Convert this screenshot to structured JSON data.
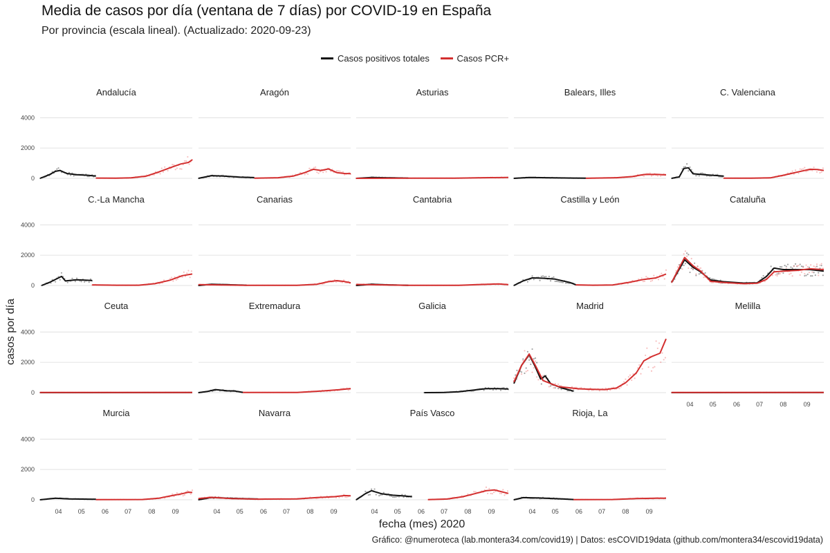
{
  "title": "Media de casos por día (ventana de 7 días) por COVID-19 en España",
  "subtitle": "Por provincia (escala lineal). (Actualizado: 2020-09-23)",
  "caption": "Gráfico: @numeroteca (lab.montera34.com/covid19) | Datos: esCOVID19data (github.com/montera34/escovid19data)",
  "colors": {
    "total": "#111111",
    "pcr": "#d32f2f",
    "pcr_points": "#f08a8a",
    "grid": "#e6e6e6"
  },
  "chart_data": {
    "type": "line",
    "xlabel": "fecha (mes) 2020",
    "ylabel": "casos por día",
    "x_ticks": [
      "04",
      "05",
      "06",
      "07",
      "08",
      "09"
    ],
    "x_tick_dates": [
      "2020-04-01",
      "2020-05-01",
      "2020-06-01",
      "2020-07-01",
      "2020-08-01",
      "2020-09-01"
    ],
    "xlim": [
      "2020-03-08",
      "2020-09-23"
    ],
    "y_ticks": [
      0,
      2000,
      4000
    ],
    "ylim": [
      0,
      4200
    ],
    "legend": [
      "Casos positivos totales",
      "Casos PCR+"
    ],
    "legend_position": "top",
    "grid": true,
    "facets": [
      {
        "name": "Andalucía",
        "total": [
          [
            "2020-03-08",
            0
          ],
          [
            "2020-03-20",
            240
          ],
          [
            "2020-03-28",
            460
          ],
          [
            "2020-04-03",
            520
          ],
          [
            "2020-04-12",
            320
          ],
          [
            "2020-04-25",
            240
          ],
          [
            "2020-05-10",
            200
          ],
          [
            "2020-05-20",
            150
          ]
        ],
        "pcr": [
          [
            "2020-05-20",
            20
          ],
          [
            "2020-06-15",
            10
          ],
          [
            "2020-07-05",
            30
          ],
          [
            "2020-07-25",
            150
          ],
          [
            "2020-08-10",
            420
          ],
          [
            "2020-08-25",
            700
          ],
          [
            "2020-09-08",
            950
          ],
          [
            "2020-09-18",
            1050
          ],
          [
            "2020-09-23",
            1230
          ]
        ]
      },
      {
        "name": "Aragón",
        "total": [
          [
            "2020-03-08",
            0
          ],
          [
            "2020-03-25",
            180
          ],
          [
            "2020-04-10",
            150
          ],
          [
            "2020-05-01",
            80
          ],
          [
            "2020-05-20",
            50
          ]
        ],
        "pcr": [
          [
            "2020-05-20",
            10
          ],
          [
            "2020-06-20",
            40
          ],
          [
            "2020-07-10",
            150
          ],
          [
            "2020-07-25",
            380
          ],
          [
            "2020-08-05",
            600
          ],
          [
            "2020-08-15",
            520
          ],
          [
            "2020-08-25",
            620
          ],
          [
            "2020-09-05",
            380
          ],
          [
            "2020-09-15",
            320
          ],
          [
            "2020-09-23",
            310
          ]
        ]
      },
      {
        "name": "Asturias",
        "total": [
          [
            "2020-03-08",
            0
          ],
          [
            "2020-03-28",
            60
          ],
          [
            "2020-04-15",
            40
          ],
          [
            "2020-05-15",
            20
          ]
        ],
        "pcr": [
          [
            "2020-03-08",
            0
          ],
          [
            "2020-05-15",
            10
          ],
          [
            "2020-07-15",
            10
          ],
          [
            "2020-08-20",
            40
          ],
          [
            "2020-09-23",
            60
          ]
        ]
      },
      {
        "name": "Balears, Illes",
        "total": [
          [
            "2020-03-08",
            0
          ],
          [
            "2020-03-28",
            60
          ],
          [
            "2020-04-20",
            40
          ],
          [
            "2020-05-25",
            20
          ],
          [
            "2020-06-10",
            10
          ]
        ],
        "pcr": [
          [
            "2020-06-10",
            5
          ],
          [
            "2020-07-20",
            40
          ],
          [
            "2020-08-10",
            120
          ],
          [
            "2020-08-25",
            250
          ],
          [
            "2020-09-10",
            260
          ],
          [
            "2020-09-23",
            230
          ]
        ]
      },
      {
        "name": "C. Valenciana",
        "total": [
          [
            "2020-03-08",
            0
          ],
          [
            "2020-03-18",
            100
          ],
          [
            "2020-03-24",
            650
          ],
          [
            "2020-03-30",
            700
          ],
          [
            "2020-04-05",
            300
          ],
          [
            "2020-04-20",
            240
          ],
          [
            "2020-05-15",
            150
          ]
        ],
        "pcr": [
          [
            "2020-05-15",
            10
          ],
          [
            "2020-06-20",
            10
          ],
          [
            "2020-07-15",
            30
          ],
          [
            "2020-08-01",
            200
          ],
          [
            "2020-08-20",
            420
          ],
          [
            "2020-09-05",
            600
          ],
          [
            "2020-09-15",
            580
          ],
          [
            "2020-09-23",
            520
          ]
        ]
      },
      {
        "name": "C.-La Mancha",
        "total": [
          [
            "2020-03-10",
            0
          ],
          [
            "2020-03-20",
            200
          ],
          [
            "2020-04-05",
            600
          ],
          [
            "2020-04-10",
            300
          ],
          [
            "2020-04-25",
            380
          ],
          [
            "2020-05-15",
            330
          ]
        ],
        "pcr": [
          [
            "2020-05-15",
            40
          ],
          [
            "2020-06-15",
            20
          ],
          [
            "2020-07-15",
            20
          ],
          [
            "2020-08-05",
            120
          ],
          [
            "2020-08-25",
            350
          ],
          [
            "2020-09-10",
            650
          ],
          [
            "2020-09-23",
            760
          ]
        ]
      },
      {
        "name": "Canarias",
        "total": [
          [
            "2020-03-08",
            0
          ],
          [
            "2020-03-25",
            80
          ],
          [
            "2020-04-10",
            60
          ],
          [
            "2020-05-10",
            20
          ]
        ],
        "pcr": [
          [
            "2020-03-08",
            60
          ],
          [
            "2020-05-10",
            10
          ],
          [
            "2020-07-15",
            10
          ],
          [
            "2020-08-10",
            80
          ],
          [
            "2020-08-25",
            250
          ],
          [
            "2020-09-05",
            320
          ],
          [
            "2020-09-15",
            260
          ],
          [
            "2020-09-23",
            180
          ]
        ]
      },
      {
        "name": "Cantabria",
        "total": [
          [
            "2020-03-08",
            0
          ],
          [
            "2020-03-28",
            80
          ],
          [
            "2020-04-20",
            40
          ],
          [
            "2020-05-15",
            10
          ]
        ],
        "pcr": [
          [
            "2020-03-08",
            70
          ],
          [
            "2020-05-15",
            10
          ],
          [
            "2020-07-20",
            10
          ],
          [
            "2020-08-20",
            70
          ],
          [
            "2020-09-10",
            100
          ],
          [
            "2020-09-23",
            60
          ]
        ]
      },
      {
        "name": "Castilla y León",
        "total": [
          [
            "2020-03-08",
            0
          ],
          [
            "2020-03-20",
            300
          ],
          [
            "2020-04-01",
            500
          ],
          [
            "2020-04-15",
            480
          ],
          [
            "2020-05-01",
            420
          ],
          [
            "2020-05-20",
            200
          ],
          [
            "2020-05-28",
            50
          ]
        ],
        "pcr": [
          [
            "2020-05-28",
            40
          ],
          [
            "2020-06-20",
            20
          ],
          [
            "2020-07-15",
            30
          ],
          [
            "2020-08-05",
            200
          ],
          [
            "2020-08-25",
            400
          ],
          [
            "2020-09-10",
            500
          ],
          [
            "2020-09-23",
            760
          ]
        ]
      },
      {
        "name": "Cataluña",
        "total": [
          [
            "2020-03-08",
            200
          ],
          [
            "2020-03-25",
            1700
          ],
          [
            "2020-04-05",
            1200
          ],
          [
            "2020-04-15",
            900
          ],
          [
            "2020-04-28",
            350
          ],
          [
            "2020-05-15",
            250
          ],
          [
            "2020-06-10",
            160
          ],
          [
            "2020-06-28",
            180
          ],
          [
            "2020-07-10",
            600
          ],
          [
            "2020-07-20",
            1150
          ],
          [
            "2020-08-01",
            1050
          ],
          [
            "2020-08-20",
            1050
          ],
          [
            "2020-09-05",
            1050
          ],
          [
            "2020-09-23",
            950
          ]
        ],
        "pcr": [
          [
            "2020-03-08",
            200
          ],
          [
            "2020-03-25",
            1850
          ],
          [
            "2020-04-05",
            1300
          ],
          [
            "2020-04-15",
            950
          ],
          [
            "2020-04-28",
            280
          ],
          [
            "2020-05-15",
            200
          ],
          [
            "2020-06-10",
            120
          ],
          [
            "2020-06-28",
            150
          ],
          [
            "2020-07-10",
            400
          ],
          [
            "2020-07-20",
            900
          ],
          [
            "2020-08-01",
            950
          ],
          [
            "2020-08-20",
            1000
          ],
          [
            "2020-09-05",
            1100
          ],
          [
            "2020-09-23",
            1050
          ]
        ]
      },
      {
        "name": "Ceuta",
        "total": [
          [
            "2020-03-08",
            0
          ],
          [
            "2020-09-23",
            5
          ]
        ],
        "pcr": [
          [
            "2020-03-08",
            10
          ],
          [
            "2020-09-23",
            15
          ]
        ]
      },
      {
        "name": "Extremadura",
        "total": [
          [
            "2020-03-08",
            0
          ],
          [
            "2020-03-20",
            80
          ],
          [
            "2020-03-30",
            200
          ],
          [
            "2020-04-15",
            120
          ],
          [
            "2020-04-25",
            100
          ],
          [
            "2020-05-05",
            20
          ]
        ],
        "pcr": [
          [
            "2020-05-05",
            10
          ],
          [
            "2020-07-15",
            10
          ],
          [
            "2020-08-15",
            100
          ],
          [
            "2020-09-10",
            200
          ],
          [
            "2020-09-23",
            270
          ]
        ]
      },
      {
        "name": "Galicia",
        "total": [
          [
            "2020-06-05",
            0
          ],
          [
            "2020-07-01",
            10
          ],
          [
            "2020-07-20",
            60
          ],
          [
            "2020-08-10",
            180
          ],
          [
            "2020-08-25",
            260
          ],
          [
            "2020-09-10",
            260
          ],
          [
            "2020-09-23",
            240
          ]
        ],
        "pcr": []
      },
      {
        "name": "Madrid",
        "total": [
          [
            "2020-03-08",
            600
          ],
          [
            "2020-03-18",
            1800
          ],
          [
            "2020-03-28",
            2500
          ],
          [
            "2020-04-05",
            1700
          ],
          [
            "2020-04-12",
            900
          ],
          [
            "2020-04-18",
            1100
          ],
          [
            "2020-04-25",
            600
          ],
          [
            "2020-05-10",
            300
          ],
          [
            "2020-05-25",
            100
          ]
        ],
        "pcr": [
          [
            "2020-03-08",
            700
          ],
          [
            "2020-03-18",
            1800
          ],
          [
            "2020-03-28",
            2550
          ],
          [
            "2020-04-05",
            1800
          ],
          [
            "2020-04-15",
            800
          ],
          [
            "2020-05-05",
            400
          ],
          [
            "2020-06-01",
            250
          ],
          [
            "2020-06-20",
            220
          ],
          [
            "2020-07-05",
            200
          ],
          [
            "2020-07-20",
            300
          ],
          [
            "2020-08-01",
            650
          ],
          [
            "2020-08-15",
            1300
          ],
          [
            "2020-08-25",
            2100
          ],
          [
            "2020-09-05",
            2400
          ],
          [
            "2020-09-15",
            2600
          ],
          [
            "2020-09-23",
            3550
          ]
        ]
      },
      {
        "name": "Melilla",
        "total": [
          [
            "2020-03-08",
            0
          ],
          [
            "2020-09-23",
            5
          ]
        ],
        "pcr": [
          [
            "2020-03-08",
            10
          ],
          [
            "2020-09-23",
            15
          ]
        ]
      },
      {
        "name": "Murcia",
        "total": [
          [
            "2020-03-08",
            0
          ],
          [
            "2020-03-28",
            100
          ],
          [
            "2020-04-15",
            60
          ],
          [
            "2020-05-20",
            30
          ]
        ],
        "pcr": [
          [
            "2020-05-20",
            10
          ],
          [
            "2020-07-20",
            20
          ],
          [
            "2020-08-10",
            100
          ],
          [
            "2020-08-25",
            250
          ],
          [
            "2020-09-10",
            400
          ],
          [
            "2020-09-18",
            500
          ],
          [
            "2020-09-23",
            480
          ]
        ]
      },
      {
        "name": "Navarra",
        "total": [
          [
            "2020-03-08",
            0
          ],
          [
            "2020-03-25",
            150
          ],
          [
            "2020-04-15",
            100
          ],
          [
            "2020-05-10",
            70
          ],
          [
            "2020-05-25",
            50
          ]
        ],
        "pcr": [
          [
            "2020-03-08",
            80
          ],
          [
            "2020-03-25",
            160
          ],
          [
            "2020-04-20",
            80
          ],
          [
            "2020-05-25",
            40
          ],
          [
            "2020-07-15",
            60
          ],
          [
            "2020-08-10",
            150
          ],
          [
            "2020-09-01",
            200
          ],
          [
            "2020-09-15",
            280
          ],
          [
            "2020-09-23",
            260
          ]
        ]
      },
      {
        "name": "País Vasco",
        "total": [
          [
            "2020-03-08",
            0
          ],
          [
            "2020-03-20",
            400
          ],
          [
            "2020-03-28",
            600
          ],
          [
            "2020-04-10",
            400
          ],
          [
            "2020-04-25",
            300
          ],
          [
            "2020-05-10",
            250
          ],
          [
            "2020-05-20",
            200
          ]
        ],
        "pcr": [
          [
            "2020-06-10",
            10
          ],
          [
            "2020-07-05",
            50
          ],
          [
            "2020-07-25",
            200
          ],
          [
            "2020-08-10",
            400
          ],
          [
            "2020-08-25",
            600
          ],
          [
            "2020-09-05",
            650
          ],
          [
            "2020-09-15",
            520
          ],
          [
            "2020-09-23",
            420
          ]
        ]
      },
      {
        "name": "Rioja, La",
        "total": [
          [
            "2020-03-08",
            0
          ],
          [
            "2020-03-20",
            140
          ],
          [
            "2020-04-10",
            120
          ],
          [
            "2020-05-10",
            60
          ],
          [
            "2020-05-25",
            20
          ]
        ],
        "pcr": [
          [
            "2020-05-25",
            10
          ],
          [
            "2020-07-15",
            20
          ],
          [
            "2020-08-15",
            80
          ],
          [
            "2020-09-10",
            100
          ],
          [
            "2020-09-23",
            100
          ]
        ]
      }
    ]
  }
}
